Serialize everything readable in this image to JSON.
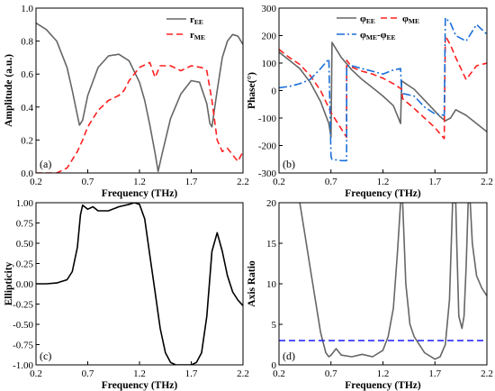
{
  "chart_data": [
    {
      "id": "a",
      "type": "line",
      "panel_label": "(a)",
      "xlabel": "Frequency (THz)",
      "ylabel": "Amplitude (a.u.)",
      "xlim": [
        0.2,
        2.2
      ],
      "ylim": [
        0,
        1.0
      ],
      "xticks": [
        "0.2",
        "0.7",
        "1.2",
        "1.7",
        "2.2"
      ],
      "yticks": [
        "0.0",
        "0.2",
        "0.4",
        "0.6",
        "0.8",
        "1.0"
      ],
      "legend_position": "top-right",
      "series": [
        {
          "name": "r_EE",
          "label_main": "r",
          "label_sub": "EE",
          "color": "#666666",
          "dash": "solid",
          "x": [
            0.2,
            0.3,
            0.4,
            0.5,
            0.55,
            0.6,
            0.62,
            0.65,
            0.7,
            0.8,
            0.9,
            1.0,
            1.1,
            1.2,
            1.25,
            1.3,
            1.35,
            1.38,
            1.42,
            1.5,
            1.6,
            1.7,
            1.78,
            1.85,
            1.88,
            1.9,
            1.95,
            2.0,
            2.05,
            2.1,
            2.15,
            2.2
          ],
          "y": [
            0.91,
            0.87,
            0.8,
            0.64,
            0.5,
            0.35,
            0.29,
            0.32,
            0.47,
            0.64,
            0.71,
            0.72,
            0.68,
            0.55,
            0.44,
            0.29,
            0.12,
            0.01,
            0.12,
            0.33,
            0.48,
            0.56,
            0.55,
            0.42,
            0.3,
            0.28,
            0.5,
            0.7,
            0.8,
            0.84,
            0.83,
            0.78
          ]
        },
        {
          "name": "r_ME",
          "label_main": "r",
          "label_sub": "ME",
          "color": "#ff2020",
          "dash": "dashed",
          "x": [
            0.2,
            0.3,
            0.4,
            0.5,
            0.6,
            0.65,
            0.7,
            0.8,
            0.9,
            1.0,
            1.05,
            1.1,
            1.2,
            1.3,
            1.35,
            1.4,
            1.5,
            1.6,
            1.7,
            1.8,
            1.85,
            1.9,
            1.95,
            2.0,
            2.05,
            2.1,
            2.15,
            2.2
          ],
          "y": [
            0.0,
            0.0,
            0.0,
            0.03,
            0.13,
            0.2,
            0.28,
            0.38,
            0.44,
            0.47,
            0.5,
            0.56,
            0.64,
            0.67,
            0.58,
            0.65,
            0.65,
            0.62,
            0.65,
            0.64,
            0.62,
            0.44,
            0.2,
            0.13,
            0.15,
            0.11,
            0.07,
            0.13
          ]
        }
      ]
    },
    {
      "id": "b",
      "type": "line",
      "panel_label": "(b)",
      "xlabel": "Frequency (THz)",
      "ylabel": "Phase(°)",
      "xlim": [
        0.2,
        2.2
      ],
      "ylim": [
        -300,
        300
      ],
      "xticks": [
        "0.2",
        "0.7",
        "1.2",
        "1.7",
        "2.2"
      ],
      "yticks": [
        "-300",
        "-200",
        "-100",
        "0",
        "100",
        "200",
        "300"
      ],
      "legend_position": "top",
      "series": [
        {
          "name": "φ_EE",
          "label_main": "φ",
          "label_sub": "EE",
          "color": "#666666",
          "dash": "solid",
          "x": [
            0.2,
            0.3,
            0.4,
            0.5,
            0.6,
            0.68,
            0.7,
            0.71,
            0.8,
            0.9,
            1.0,
            1.1,
            1.2,
            1.3,
            1.37,
            1.38,
            1.5,
            1.6,
            1.7,
            1.75,
            1.8,
            1.85,
            1.9,
            2.0,
            2.1,
            2.2
          ],
          "y": [
            140,
            110,
            80,
            30,
            -40,
            -120,
            -170,
            175,
            120,
            75,
            40,
            10,
            -20,
            -55,
            -120,
            35,
            5,
            -35,
            -75,
            -95,
            -110,
            -100,
            -70,
            -90,
            -120,
            -150
          ]
        },
        {
          "name": "φ_ME",
          "label_main": "φ",
          "label_sub": "ME",
          "color": "#ff2020",
          "dash": "dashed",
          "x": [
            0.2,
            0.3,
            0.4,
            0.5,
            0.6,
            0.7,
            0.8,
            0.85,
            0.851,
            0.9,
            1.0,
            1.1,
            1.2,
            1.3,
            1.38,
            1.39,
            1.5,
            1.6,
            1.7,
            1.79,
            1.8,
            1.85,
            1.9,
            2.0,
            2.1,
            2.2
          ],
          "y": [
            150,
            120,
            95,
            55,
            0,
            -80,
            -140,
            -170,
            110,
            85,
            70,
            60,
            45,
            25,
            5,
            -30,
            -65,
            -100,
            -135,
            -175,
            200,
            165,
            120,
            40,
            90,
            100
          ]
        },
        {
          "name": "φ_ME-φ_EE",
          "label_main": "φ",
          "label_sub": "ME",
          "label_main2": "-φ",
          "label_sub2": "EE",
          "color": "#1a6fd8",
          "dash": "dashdot",
          "x": [
            0.2,
            0.3,
            0.4,
            0.5,
            0.6,
            0.68,
            0.7,
            0.71,
            0.8,
            0.85,
            0.851,
            0.9,
            1.0,
            1.1,
            1.2,
            1.3,
            1.37,
            1.38,
            1.5,
            1.6,
            1.7,
            1.79,
            1.8,
            1.85,
            1.9,
            2.0,
            2.1,
            2.2
          ],
          "y": [
            10,
            15,
            25,
            40,
            80,
            115,
            -240,
            -250,
            -255,
            -255,
            90,
            90,
            80,
            70,
            60,
            75,
            80,
            -10,
            -20,
            -60,
            -85,
            -90,
            265,
            245,
            200,
            180,
            240,
            205
          ]
        }
      ]
    },
    {
      "id": "c",
      "type": "line",
      "panel_label": "(c)",
      "xlabel": "Frequency (THz)",
      "ylabel": "Ellipticity",
      "xlim": [
        0.2,
        2.2
      ],
      "ylim": [
        -1.0,
        1.0
      ],
      "xticks": [
        "0.2",
        "0.7",
        "1.2",
        "1.7",
        "2.2"
      ],
      "yticks": [
        "-1.00",
        "-0.75",
        "-0.50",
        "-0.25",
        "0.00",
        "0.25",
        "0.50",
        "0.75",
        "1.00"
      ],
      "series": [
        {
          "name": "ellipticity",
          "color": "#000000",
          "dash": "solid",
          "x": [
            0.2,
            0.3,
            0.4,
            0.5,
            0.55,
            0.6,
            0.63,
            0.65,
            0.7,
            0.75,
            0.8,
            0.9,
            1.0,
            1.1,
            1.15,
            1.2,
            1.25,
            1.3,
            1.35,
            1.4,
            1.45,
            1.5,
            1.55,
            1.6,
            1.7,
            1.75,
            1.8,
            1.85,
            1.9,
            1.95,
            2.0,
            2.05,
            2.1,
            2.15,
            2.2
          ],
          "y": [
            0.0,
            0.0,
            0.01,
            0.05,
            0.15,
            0.45,
            0.85,
            0.97,
            0.92,
            0.95,
            0.9,
            0.9,
            0.95,
            0.98,
            1.0,
            0.98,
            0.8,
            0.35,
            -0.1,
            -0.55,
            -0.85,
            -0.97,
            -1.0,
            -1.0,
            -1.0,
            -0.97,
            -0.85,
            -0.4,
            0.4,
            0.63,
            0.4,
            0.1,
            -0.1,
            -0.2,
            -0.27
          ]
        }
      ]
    },
    {
      "id": "d",
      "type": "line",
      "panel_label": "(d)",
      "xlabel": "Frequency (THz)",
      "ylabel": "Axis Ratio",
      "xlim": [
        0.2,
        2.2
      ],
      "ylim": [
        0,
        20
      ],
      "xticks": [
        "0.2",
        "0.7",
        "1.2",
        "1.7",
        "2.2"
      ],
      "yticks": [
        "0",
        "5",
        "10",
        "15",
        "20"
      ],
      "series": [
        {
          "name": "axis ratio",
          "color": "#666666",
          "dash": "solid",
          "x": [
            0.4,
            0.45,
            0.5,
            0.55,
            0.6,
            0.65,
            0.68,
            0.7,
            0.75,
            0.8,
            0.9,
            1.0,
            1.1,
            1.2,
            1.25,
            1.3,
            1.34,
            1.37,
            1.38,
            1.39,
            1.42,
            1.46,
            1.5,
            1.6,
            1.7,
            1.75,
            1.8,
            1.84,
            1.87,
            1.89,
            1.9,
            1.91,
            1.93,
            1.96,
            1.98,
            2.0,
            2.02,
            2.03,
            2.04,
            2.06,
            2.1,
            2.15,
            2.2
          ],
          "y": [
            20,
            16,
            12,
            8,
            4,
            1.5,
            1.0,
            1.2,
            2.0,
            1.2,
            1.0,
            1.3,
            1.0,
            1.8,
            3.5,
            7,
            14,
            20,
            20,
            20,
            10,
            5,
            3.5,
            1.5,
            0.7,
            1.0,
            2.5,
            8,
            20,
            20,
            20,
            15,
            6,
            4.5,
            6,
            12,
            20,
            20,
            20,
            15,
            11,
            9.5,
            8.5
          ]
        },
        {
          "name": "reference line",
          "color": "#1a1aff",
          "dash": "dashed",
          "x": [
            0.2,
            2.2
          ],
          "y": [
            3,
            3
          ]
        }
      ]
    }
  ]
}
